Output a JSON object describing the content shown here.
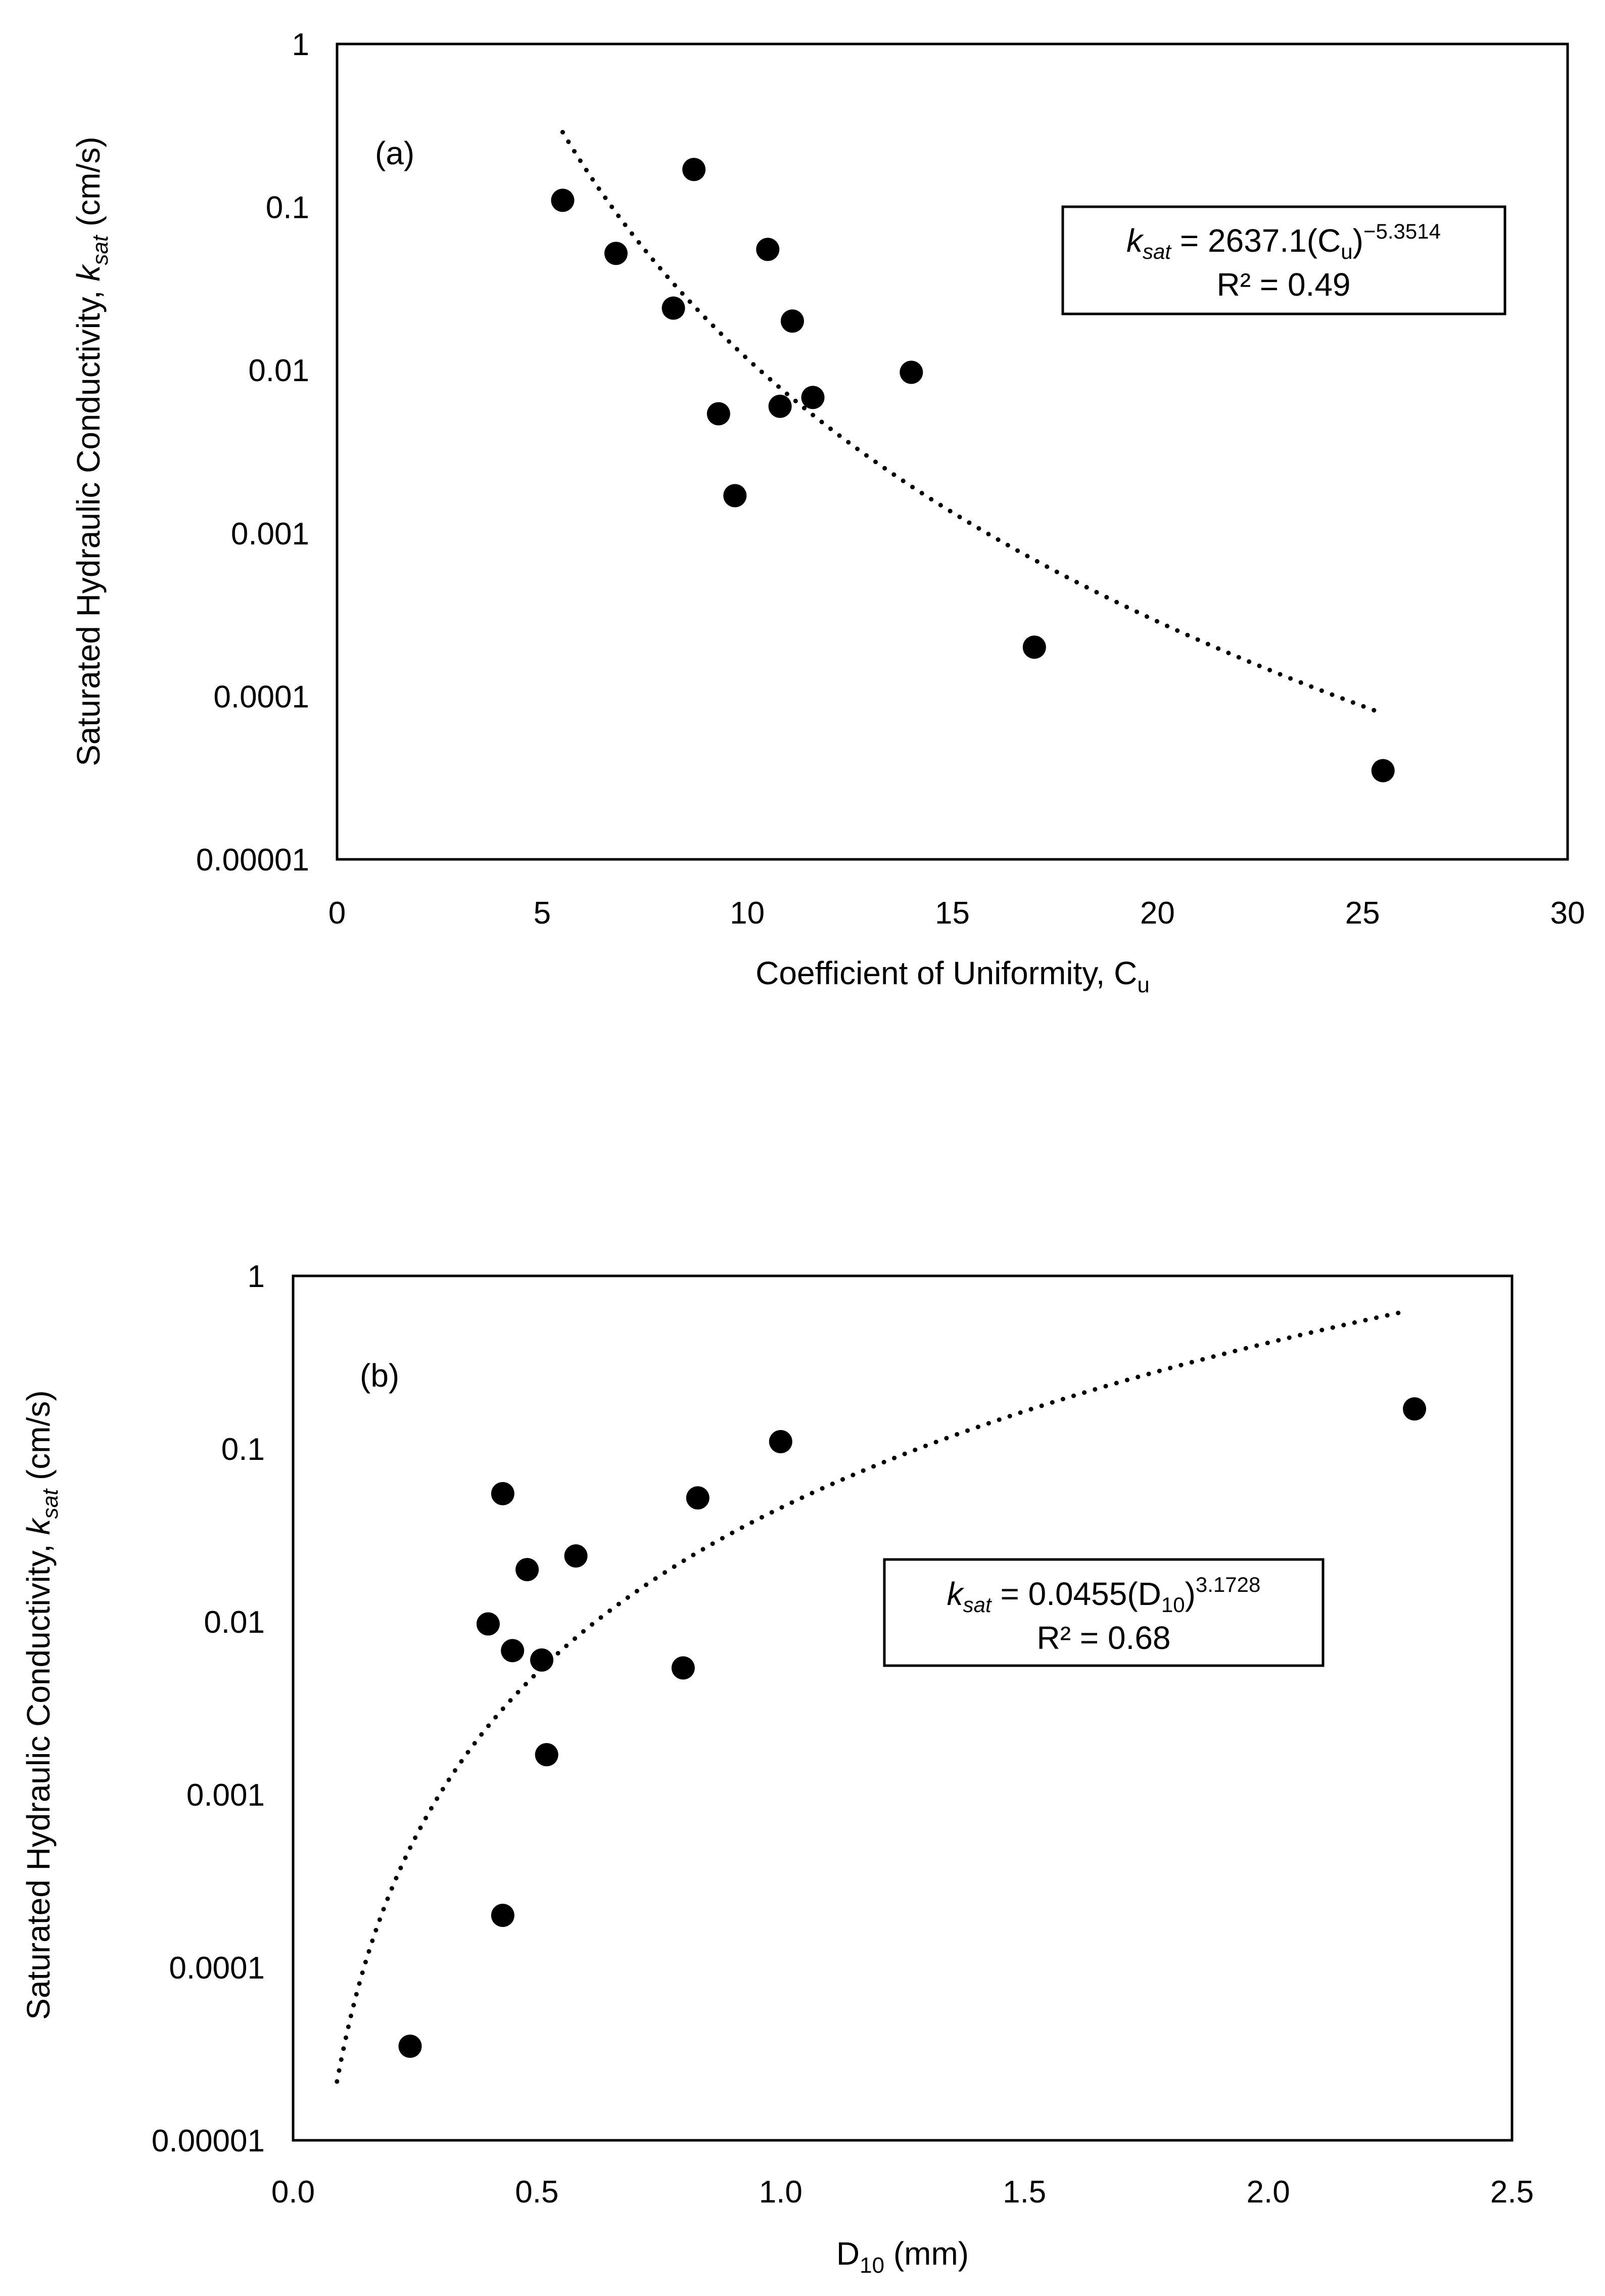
{
  "chart_data": [
    {
      "type": "scatter",
      "panel_label": "(a)",
      "xlabel": "Coefficient of Uniformity, C",
      "xlabel_sub": "u",
      "ylabel_pre": "Saturated Hydraulic Conductivity, ",
      "ylabel_italic": "k",
      "ylabel_sub": "sat",
      "ylabel_post": " (cm/s)",
      "xlim": [
        0,
        30
      ],
      "xticks": [
        "0",
        "5",
        "10",
        "15",
        "20",
        "25",
        "30"
      ],
      "xtick_values": [
        0,
        5,
        10,
        15,
        20,
        25,
        30
      ],
      "ylim": [
        1e-05,
        1
      ],
      "yscale": "log",
      "yticks": [
        "1",
        "0.1",
        "0.01",
        "0.001",
        "0.0001",
        "0.00001"
      ],
      "ytick_values": [
        1,
        0.1,
        0.01,
        0.001,
        0.0001,
        1e-05
      ],
      "points": [
        {
          "x": 5.5,
          "y": 0.11
        },
        {
          "x": 6.8,
          "y": 0.052
        },
        {
          "x": 8.2,
          "y": 0.024
        },
        {
          "x": 8.7,
          "y": 0.17
        },
        {
          "x": 9.3,
          "y": 0.0054
        },
        {
          "x": 9.7,
          "y": 0.0017
        },
        {
          "x": 10.5,
          "y": 0.055
        },
        {
          "x": 10.8,
          "y": 0.006
        },
        {
          "x": 11.1,
          "y": 0.02
        },
        {
          "x": 11.6,
          "y": 0.0068
        },
        {
          "x": 14.0,
          "y": 0.0097
        },
        {
          "x": 17.0,
          "y": 0.0002
        },
        {
          "x": 25.5,
          "y": 3.5e-05
        }
      ],
      "trendline": {
        "form": "power",
        "a": 2637.1,
        "b": -5.3514,
        "x_range": [
          5.5,
          25.5
        ]
      },
      "equation": {
        "lhs_italic": "k",
        "lhs_sub": "sat",
        "rhs_main": " = 2637.1(C",
        "rhs_sub": "u",
        "rhs_close": ")",
        "rhs_sup": "−5.3514",
        "r2": "R² = 0.49"
      }
    },
    {
      "type": "scatter",
      "panel_label": "(b)",
      "xlabel": "D",
      "xlabel_sub": "10",
      "xlabel_post": " (mm)",
      "ylabel_pre": "Saturated Hydraulic Conductivity, ",
      "ylabel_italic": "k",
      "ylabel_sub": "sat",
      "ylabel_post": " (cm/s)",
      "xlim": [
        0,
        2.5
      ],
      "xticks": [
        "0.0",
        "0.5",
        "1.0",
        "1.5",
        "2.0",
        "2.5"
      ],
      "xtick_values": [
        0,
        0.5,
        1.0,
        1.5,
        2.0,
        2.5
      ],
      "ylim": [
        1e-05,
        1
      ],
      "yscale": "log",
      "yticks": [
        "1",
        "0.1",
        "0.01",
        "0.001",
        "0.0001",
        "0.00001"
      ],
      "ytick_values": [
        1,
        0.1,
        0.01,
        0.001,
        0.0001,
        1e-05
      ],
      "points": [
        {
          "x": 0.24,
          "y": 3.5e-05
        },
        {
          "x": 0.4,
          "y": 0.0097
        },
        {
          "x": 0.43,
          "y": 0.055
        },
        {
          "x": 0.43,
          "y": 0.0002
        },
        {
          "x": 0.45,
          "y": 0.0068
        },
        {
          "x": 0.48,
          "y": 0.02
        },
        {
          "x": 0.51,
          "y": 0.006
        },
        {
          "x": 0.52,
          "y": 0.0017
        },
        {
          "x": 0.58,
          "y": 0.024
        },
        {
          "x": 0.8,
          "y": 0.0054
        },
        {
          "x": 0.83,
          "y": 0.052
        },
        {
          "x": 1.0,
          "y": 0.11
        },
        {
          "x": 2.3,
          "y": 0.17
        }
      ],
      "trendline": {
        "form": "power",
        "a": 0.0455,
        "b": 3.1728,
        "x_range": [
          0.09,
          2.27
        ]
      },
      "equation": {
        "lhs_italic": "k",
        "lhs_sub": "sat",
        "rhs_main": " = 0.0455(D",
        "rhs_sub": "10",
        "rhs_close": ")",
        "rhs_sup": "3.1728",
        "r2": "R² = 0.68"
      }
    }
  ]
}
